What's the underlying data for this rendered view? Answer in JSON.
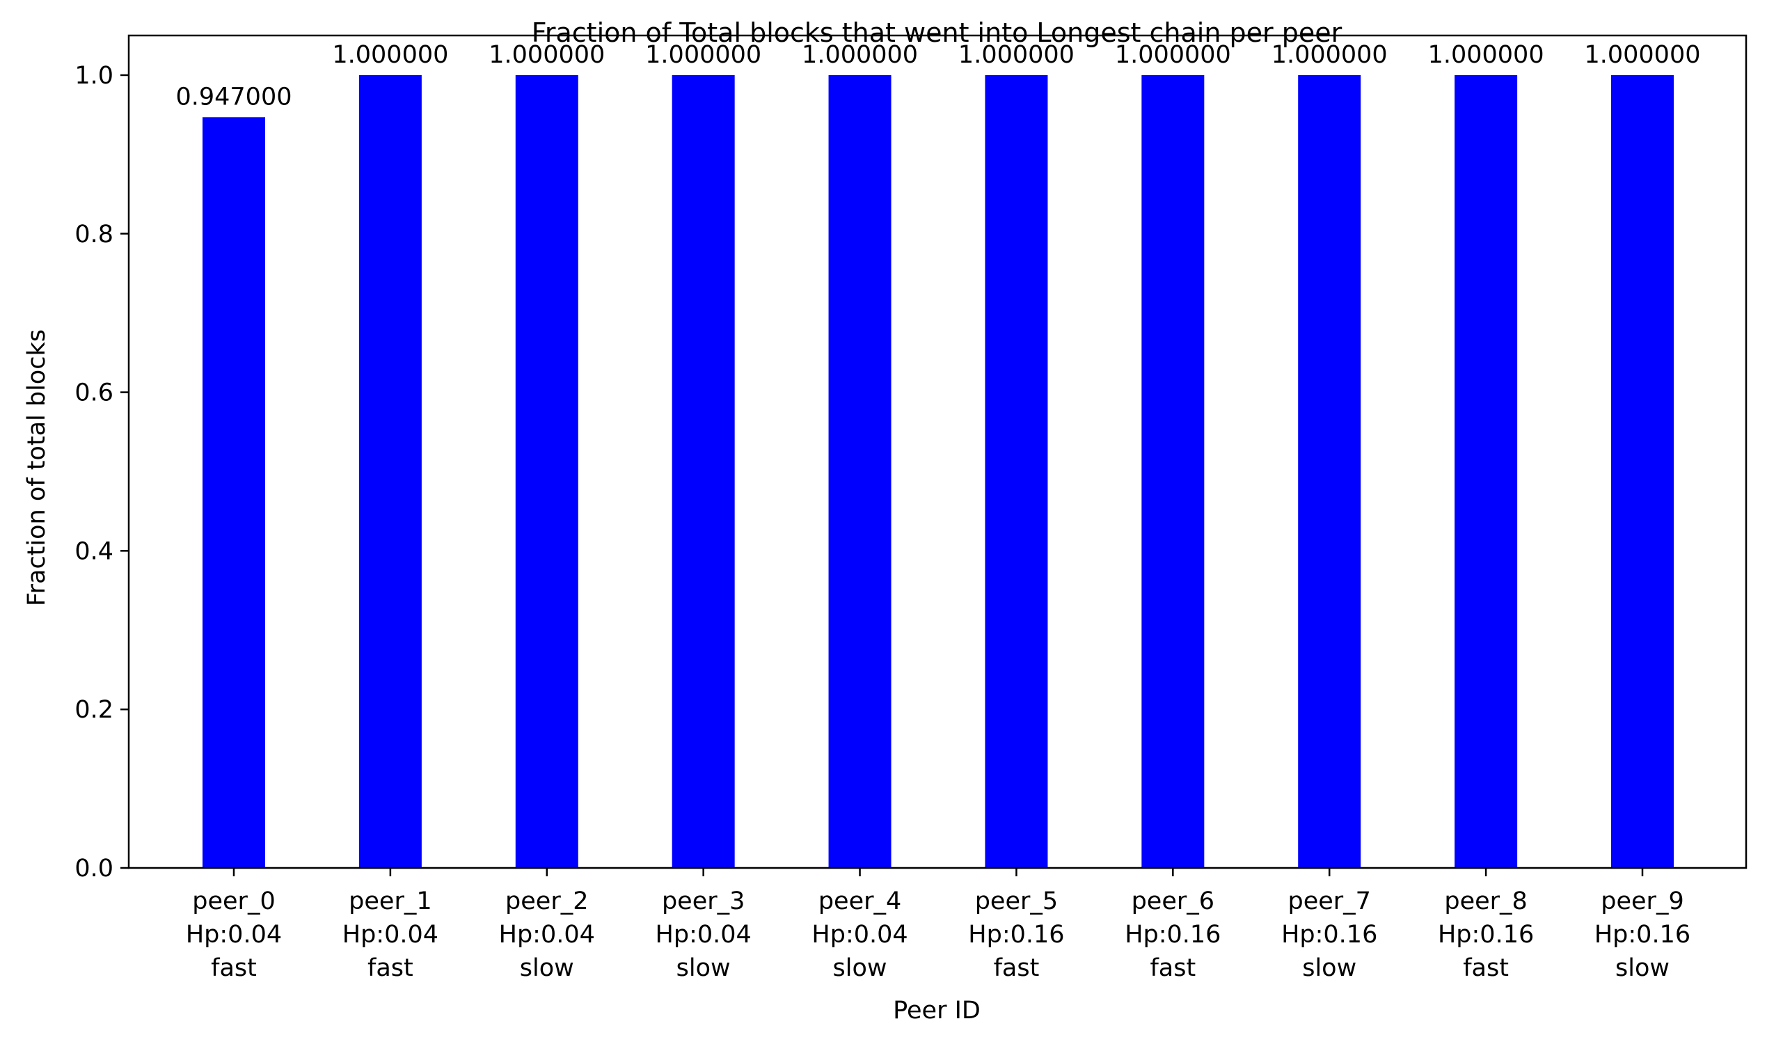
{
  "chart_data": {
    "type": "bar",
    "title": "Fraction of Total blocks that went into Longest chain per peer",
    "xlabel": "Peer ID",
    "ylabel": "Fraction of total blocks",
    "ylim": [
      0,
      1.05
    ],
    "yticks": [
      0.0,
      0.2,
      0.4,
      0.6,
      0.8,
      1.0
    ],
    "ytick_labels": [
      "0.0",
      "0.2",
      "0.4",
      "0.6",
      "0.8",
      "1.0"
    ],
    "grid": false,
    "bar_color": "#0000ff",
    "categories": [
      [
        "peer_0",
        "Hp:0.04",
        "fast"
      ],
      [
        "peer_1",
        "Hp:0.04",
        "fast"
      ],
      [
        "peer_2",
        "Hp:0.04",
        "slow"
      ],
      [
        "peer_3",
        "Hp:0.04",
        "slow"
      ],
      [
        "peer_4",
        "Hp:0.04",
        "slow"
      ],
      [
        "peer_5",
        "Hp:0.16",
        "fast"
      ],
      [
        "peer_6",
        "Hp:0.16",
        "fast"
      ],
      [
        "peer_7",
        "Hp:0.16",
        "slow"
      ],
      [
        "peer_8",
        "Hp:0.16",
        "fast"
      ],
      [
        "peer_9",
        "Hp:0.16",
        "slow"
      ]
    ],
    "values": [
      0.947,
      1.0,
      1.0,
      1.0,
      1.0,
      1.0,
      1.0,
      1.0,
      1.0,
      1.0
    ],
    "data_labels": [
      "0.947000",
      "1.000000",
      "1.000000",
      "1.000000",
      "1.000000",
      "1.000000",
      "1.000000",
      "1.000000",
      "1.000000",
      "1.000000"
    ]
  }
}
